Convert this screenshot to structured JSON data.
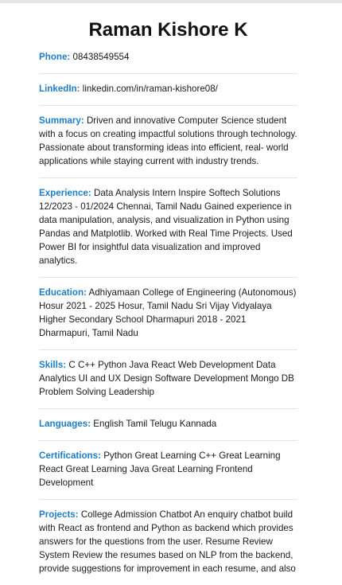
{
  "name": "Raman Kishore K",
  "sections": {
    "phone": {
      "label": "Phone:",
      "value": "08438549554"
    },
    "linkedin": {
      "label": "LinkedIn:",
      "value": "linkedin.com/in/raman-kishore08/"
    },
    "summary": {
      "label": "Summary:",
      "value": "Driven and innovative Computer Science student with a focus on creating impactful solutions through technology. Passionate about transforming ideas into efficient, real- world applications while staying current with industry trends."
    },
    "experience": {
      "label": "Experience:",
      "value": "Data Analysis Intern Inspire Softech Solutions 12/2023 - 01/2024 Chennai, Tamil Nadu Gained experience in data manipulation, analysis, and visualization in Python using Pandas and Matplotlib. Worked with Real Time Projects. Used Power BI for insightful data visualization and improved analytics."
    },
    "education": {
      "label": "Education:",
      "value": "Adhiyamaan College of Engineering (Autonomous) Hosur 2021 - 2025 Hosur, Tamil Nadu Sri Vijay Vidyalaya Higher Secondary School Dharmapuri 2018 - 2021 Dharmapuri, Tamil Nadu"
    },
    "skills": {
      "label": "Skills:",
      "value": "C C++ Python Java React Web Development Data Analytics UI and UX Design Software Development Mongo DB Problem Solving Leadership"
    },
    "languages": {
      "label": "Languages:",
      "value": "English Tamil Telugu Kannada"
    },
    "certifications": {
      "label": "Certifications:",
      "value": "Python Great Learning C++ Great Learning React Great Learning Java Great Learning Frontend Development"
    },
    "projects": {
      "label": "Projects:",
      "value": "College Admission Chatbot An enquiry chatbot build with React as frontend and Python as backend which provides answers for the questions from the user. Resume Review System Review the resumes based on NLP from the backend, provide suggestions for improvement in each resume, and also"
    }
  },
  "colors": {
    "label": "#1e7ec8",
    "text": "#1a1a1a",
    "divider": "#e4e4e4"
  }
}
